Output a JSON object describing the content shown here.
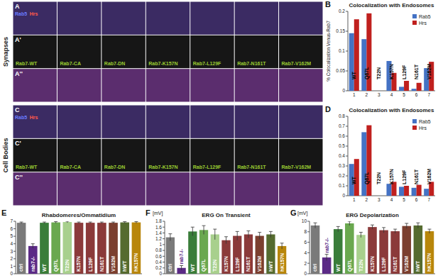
{
  "image_panels": {
    "sections": [
      {
        "label": "Synapses",
        "rows": [
          "A",
          "A'",
          "A''"
        ]
      },
      {
        "label": "Cell Bodies",
        "rows": [
          "C",
          "C'",
          "C''"
        ]
      }
    ],
    "stains": [
      {
        "name": "Rab5",
        "color": "#6a7dff"
      },
      {
        "name": "Hrs",
        "color": "#ff5a4a"
      }
    ],
    "columns": [
      "Rab7-WT",
      "Rab7-CA",
      "Rab7-DN",
      "Rab7-K157N",
      "Rab7-L129F",
      "Rab7-N161T",
      "Rab7-V162M"
    ]
  },
  "chart_data": [
    {
      "type": "bar",
      "panel_label": "B",
      "title": "Colocalization with Endosomes",
      "y_label": "% Colocalization Venus-Rab7",
      "categories": [
        "1",
        "2",
        "3",
        "4",
        "5",
        "6",
        "7"
      ],
      "annotations": [
        "WT",
        "Q67L",
        "T22N",
        "K157N",
        "L129F",
        "N161T",
        "V162M"
      ],
      "series": [
        {
          "name": "Rab5",
          "color": "#4472c4",
          "values": [
            0.145,
            0.13,
            0,
            0.075,
            0.01,
            0.005,
            0.057
          ]
        },
        {
          "name": "Hrs",
          "color": "#c0201e",
          "values": [
            0.18,
            0.195,
            0,
            0.045,
            0.025,
            0.02,
            0.073
          ]
        }
      ],
      "ylim": [
        0,
        0.2
      ],
      "yticks": [
        0,
        0.05,
        0.1,
        0.15,
        0.2
      ],
      "legend": "upper right"
    },
    {
      "type": "bar",
      "panel_label": "D",
      "title": "Colocalization with Endosomes",
      "categories": [
        "1",
        "2",
        "3",
        "4",
        "5",
        "6",
        "7"
      ],
      "annotations": [
        "WT",
        "Q67L",
        "T22N",
        "K157N",
        "L129F",
        "N161T",
        "V162M"
      ],
      "series": [
        {
          "name": "Rab5",
          "color": "#4472c4",
          "values": [
            0.32,
            0.64,
            0,
            0.12,
            0.09,
            0.08,
            0.07
          ]
        },
        {
          "name": "Hrs",
          "color": "#c0201e",
          "values": [
            0.37,
            0.71,
            0,
            0.14,
            0.1,
            0.11,
            0.14
          ]
        }
      ],
      "ylim": [
        0,
        0.8
      ],
      "yticks": [
        0,
        0.1,
        0.2,
        0.3,
        0.4,
        0.5,
        0.6,
        0.7,
        0.8
      ],
      "legend": "upper right"
    },
    {
      "type": "bar",
      "panel_label": "E",
      "title": "Rhabdomeres/Ommatidium",
      "categories": [
        "ctrl",
        "rab7-/-",
        "WT",
        "Q67L",
        "T22N",
        "K157N",
        "L129F",
        "N161T",
        "V162M",
        "hWT",
        "hK157N"
      ],
      "values": [
        6.8,
        3.7,
        6.8,
        6.85,
        6.9,
        6.8,
        6.8,
        6.8,
        6.8,
        6.85,
        6.85
      ],
      "errors": [
        0.1,
        0.3,
        0.1,
        0.1,
        0.1,
        0.1,
        0.1,
        0.1,
        0.1,
        0.1,
        0.1
      ],
      "colors": [
        "#7a7a7a",
        "#5b2a86",
        "#3a7d3a",
        "#6aa84f",
        "#a8d08d",
        "#8b3a3a",
        "#8b3a3a",
        "#8b3a3a",
        "#7b3f2f",
        "#556b2f",
        "#b8860b"
      ],
      "ylim": [
        0,
        7
      ],
      "yticks": [
        0,
        1,
        2,
        3,
        4,
        5,
        6,
        7
      ]
    },
    {
      "type": "bar",
      "panel_label": "F",
      "title": "ERG On Transient",
      "y_label": "[mV]",
      "categories": [
        "ctrl",
        "rab7-/-",
        "WT",
        "Q67L",
        "T22N",
        "K157N",
        "L129F",
        "N161T",
        "V162M",
        "hWT",
        "hK157N"
      ],
      "values": [
        1.25,
        0.2,
        1.45,
        1.5,
        1.35,
        1.15,
        1.3,
        1.35,
        1.3,
        1.35,
        0.95
      ],
      "errors": [
        0.12,
        0.08,
        0.15,
        0.15,
        0.18,
        0.12,
        0.15,
        0.12,
        0.12,
        0.1,
        0.1
      ],
      "colors": [
        "#7a7a7a",
        "#5b2a86",
        "#3a7d3a",
        "#6aa84f",
        "#a8d08d",
        "#8b3a3a",
        "#8b3a3a",
        "#8b3a3a",
        "#7b3f2f",
        "#556b2f",
        "#b8860b"
      ],
      "ylim": [
        0,
        1.8
      ],
      "yticks": [
        0,
        0.2,
        0.4,
        0.6,
        0.8,
        1,
        1.2,
        1.4,
        1.6,
        1.8
      ]
    },
    {
      "type": "bar",
      "panel_label": "G",
      "title": "ERG Depolarization",
      "y_label": "[mV]",
      "categories": [
        "ctrl",
        "rab7-/-",
        "WT",
        "Q67L",
        "T22N",
        "K157N",
        "L129F",
        "N161T",
        "V162M",
        "hWT",
        "hK157N"
      ],
      "values": [
        9.2,
        3.1,
        8.5,
        9.6,
        7.4,
        8.9,
        8.3,
        8.1,
        9.1,
        9.2,
        8.1
      ],
      "errors": [
        0.5,
        0.6,
        0.5,
        0.4,
        0.5,
        0.4,
        0.5,
        0.4,
        0.5,
        0.5,
        0.4
      ],
      "colors": [
        "#7a7a7a",
        "#5b2a86",
        "#3a7d3a",
        "#6aa84f",
        "#a8d08d",
        "#8b3a3a",
        "#8b3a3a",
        "#8b3a3a",
        "#7b3f2f",
        "#556b2f",
        "#b8860b"
      ],
      "ylim": [
        0,
        10
      ],
      "yticks": [
        0,
        2,
        4,
        6,
        8,
        10
      ]
    }
  ]
}
